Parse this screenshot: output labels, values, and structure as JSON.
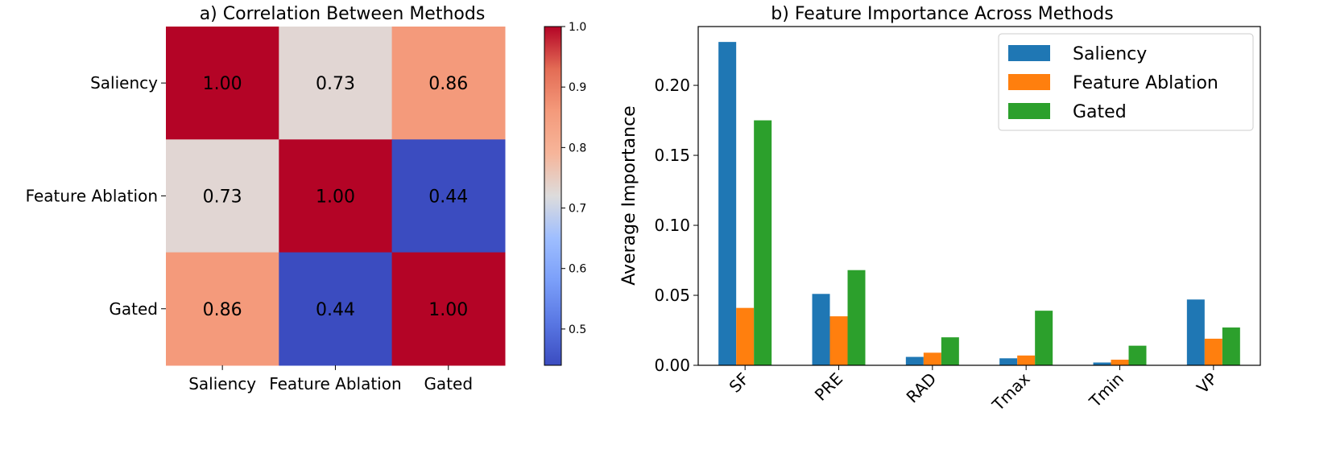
{
  "chart_data": [
    {
      "type": "heatmap",
      "title": "a) Correlation Between Methods",
      "row_labels": [
        "Saliency",
        "Feature Ablation",
        "Gated"
      ],
      "col_labels": [
        "Saliency",
        "Feature Ablation",
        "Gated"
      ],
      "values": [
        [
          1.0,
          0.73,
          0.86
        ],
        [
          0.73,
          1.0,
          0.44
        ],
        [
          0.86,
          0.44,
          1.0
        ]
      ],
      "value_labels": [
        [
          "1.00",
          "0.73",
          "0.86"
        ],
        [
          "0.73",
          "1.00",
          "0.44"
        ],
        [
          "0.86",
          "0.44",
          "1.00"
        ]
      ],
      "colormap": "coolwarm",
      "colorbar": {
        "vmin": 0.44,
        "vmax": 1.0,
        "ticks": [
          0.5,
          0.6,
          0.7,
          0.8,
          0.9,
          1.0
        ],
        "tick_labels": [
          "0.5",
          "0.6",
          "0.7",
          "0.8",
          "0.9",
          "1.0"
        ]
      }
    },
    {
      "type": "bar",
      "title": "b) Feature Importance Across Methods",
      "categories": [
        "SF",
        "PRE",
        "RAD",
        "Tmax",
        "Tmin",
        "VP"
      ],
      "series": [
        {
          "name": "Saliency",
          "color": "#1f77b4",
          "values": [
            0.231,
            0.051,
            0.006,
            0.005,
            0.002,
            0.047
          ]
        },
        {
          "name": "Feature Ablation",
          "color": "#ff7f0e",
          "values": [
            0.041,
            0.035,
            0.009,
            0.007,
            0.004,
            0.019
          ]
        },
        {
          "name": "Gated",
          "color": "#2ca02c",
          "values": [
            0.175,
            0.068,
            0.02,
            0.039,
            0.014,
            0.027
          ]
        }
      ],
      "xlabel": "",
      "ylabel": "Average Importance",
      "ylim": [
        0,
        0.242
      ],
      "yticks": [
        0.0,
        0.05,
        0.1,
        0.15,
        0.2
      ],
      "ytick_labels": [
        "0.00",
        "0.05",
        "0.10",
        "0.15",
        "0.20"
      ],
      "legend_position": "top-right"
    }
  ]
}
